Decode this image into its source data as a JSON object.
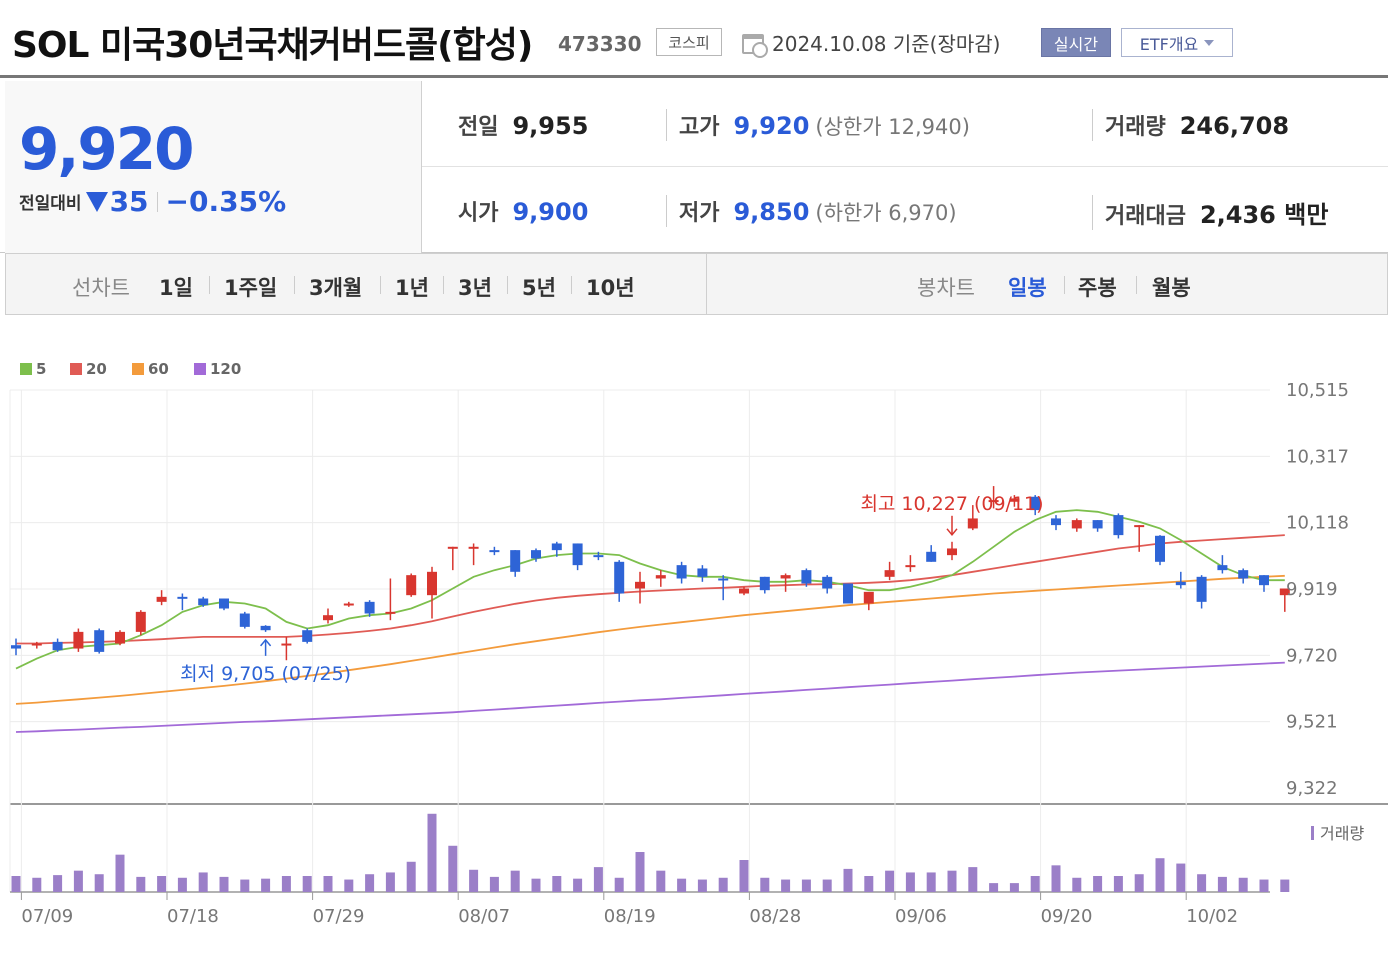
{
  "header": {
    "title": "SOL 미국30년국채커버드콜(합성)",
    "code": "473330",
    "market": "코스피",
    "base_date": "2024.10.08 기준(장마감)",
    "realtime_label": "실시간",
    "etf_overview_label": "ETF개요"
  },
  "quote": {
    "price": "9,920",
    "change_label": "전일대비",
    "change": "35",
    "change_pct": "−0.35%",
    "prev_close_label": "전일",
    "prev_close": "9,955",
    "open_label": "시가",
    "open": "9,900",
    "high_label": "고가",
    "high": "9,920",
    "upper_limit": "(상한가 12,940)",
    "low_label": "저가",
    "low": "9,850",
    "lower_limit": "(하한가 6,970)",
    "volume_label": "거래량",
    "volume": "246,708",
    "amount_label": "거래대금",
    "amount": "2,436 백만"
  },
  "tabs": {
    "line_label": "선차트",
    "periods": [
      "1일",
      "1주일",
      "3개월",
      "1년",
      "3년",
      "5년",
      "10년"
    ],
    "candle_label": "봉차트",
    "candles": [
      "일봉",
      "주봉",
      "월봉"
    ],
    "active_candle": "일봉"
  },
  "chart_data": {
    "type": "candlestick",
    "up_color": "#d8362f",
    "down_color": "#2e64d6",
    "legend": [
      {
        "name": "5",
        "color": "#7dbf4c"
      },
      {
        "name": "20",
        "color": "#e05b55"
      },
      {
        "name": "60",
        "color": "#f39b3c"
      },
      {
        "name": "120",
        "color": "#a26ad8"
      }
    ],
    "y_ticks": [
      "10,515",
      "10,317",
      "10,118",
      "9,919",
      "9,720",
      "9,521",
      "9,322"
    ],
    "ylim": [
      9322,
      10515
    ],
    "x_ticks": [
      {
        "label": "07/09",
        "index": 1
      },
      {
        "label": "07/18",
        "index": 8
      },
      {
        "label": "07/29",
        "index": 15
      },
      {
        "label": "08/07",
        "index": 22
      },
      {
        "label": "08/19",
        "index": 29
      },
      {
        "label": "08/28",
        "index": 36
      },
      {
        "label": "09/06",
        "index": 43
      },
      {
        "label": "09/20",
        "index": 50
      },
      {
        "label": "10/02",
        "index": 57
      }
    ],
    "annotation_high": "최고 10,227 (09/11)",
    "annotation_low": "최저 9,705 (07/25)",
    "high_index": 45,
    "low_index": 12,
    "volume_label": "거래량",
    "candles": [
      {
        "o": 9750,
        "h": 9770,
        "l": 9720,
        "c": 9740
      },
      {
        "o": 9750,
        "h": 9760,
        "l": 9740,
        "c": 9755
      },
      {
        "o": 9760,
        "h": 9770,
        "l": 9730,
        "c": 9735
      },
      {
        "o": 9740,
        "h": 9800,
        "l": 9730,
        "c": 9790
      },
      {
        "o": 9795,
        "h": 9800,
        "l": 9725,
        "c": 9730
      },
      {
        "o": 9755,
        "h": 9795,
        "l": 9750,
        "c": 9790
      },
      {
        "o": 9790,
        "h": 9855,
        "l": 9780,
        "c": 9850
      },
      {
        "o": 9880,
        "h": 9915,
        "l": 9870,
        "c": 9895
      },
      {
        "o": 9895,
        "h": 9905,
        "l": 9855,
        "c": 9890
      },
      {
        "o": 9890,
        "h": 9895,
        "l": 9865,
        "c": 9870
      },
      {
        "o": 9890,
        "h": 9890,
        "l": 9855,
        "c": 9860
      },
      {
        "o": 9845,
        "h": 9850,
        "l": 9800,
        "c": 9805
      },
      {
        "o": 9808,
        "h": 9810,
        "l": 9790,
        "c": 9795
      },
      {
        "o": 9750,
        "h": 9775,
        "l": 9705,
        "c": 9755
      },
      {
        "o": 9795,
        "h": 9800,
        "l": 9755,
        "c": 9760
      },
      {
        "o": 9825,
        "h": 9860,
        "l": 9815,
        "c": 9840
      },
      {
        "o": 9870,
        "h": 9880,
        "l": 9865,
        "c": 9875
      },
      {
        "o": 9880,
        "h": 9885,
        "l": 9835,
        "c": 9845
      },
      {
        "o": 9850,
        "h": 9950,
        "l": 9825,
        "c": 9850
      },
      {
        "o": 9900,
        "h": 9965,
        "l": 9895,
        "c": 9960
      },
      {
        "o": 9900,
        "h": 9985,
        "l": 9830,
        "c": 9970
      },
      {
        "o": 10040,
        "h": 10045,
        "l": 9975,
        "c": 10045
      },
      {
        "o": 10045,
        "h": 10055,
        "l": 9990,
        "c": 10045
      },
      {
        "o": 10035,
        "h": 10045,
        "l": 10020,
        "c": 10030
      },
      {
        "o": 10035,
        "h": 10035,
        "l": 9955,
        "c": 9970
      },
      {
        "o": 10035,
        "h": 10040,
        "l": 10000,
        "c": 10010
      },
      {
        "o": 10055,
        "h": 10060,
        "l": 10015,
        "c": 10035
      },
      {
        "o": 10055,
        "h": 10055,
        "l": 9975,
        "c": 9990
      },
      {
        "o": 10020,
        "h": 10030,
        "l": 10005,
        "c": 10015
      },
      {
        "o": 10000,
        "h": 10005,
        "l": 9880,
        "c": 9905
      },
      {
        "o": 9920,
        "h": 9970,
        "l": 9875,
        "c": 9940
      },
      {
        "o": 9950,
        "h": 9975,
        "l": 9925,
        "c": 9960
      },
      {
        "o": 9990,
        "h": 10000,
        "l": 9935,
        "c": 9950
      },
      {
        "o": 9980,
        "h": 9990,
        "l": 9940,
        "c": 9955
      },
      {
        "o": 9950,
        "h": 9960,
        "l": 9885,
        "c": 9945
      },
      {
        "o": 9905,
        "h": 9925,
        "l": 9900,
        "c": 9920
      },
      {
        "o": 9955,
        "h": 9955,
        "l": 9905,
        "c": 9915
      },
      {
        "o": 9950,
        "h": 9965,
        "l": 9910,
        "c": 9960
      },
      {
        "o": 9975,
        "h": 9980,
        "l": 9925,
        "c": 9935
      },
      {
        "o": 9955,
        "h": 9960,
        "l": 9905,
        "c": 9920
      },
      {
        "o": 9935,
        "h": 9935,
        "l": 9875,
        "c": 9875
      },
      {
        "o": 9875,
        "h": 9900,
        "l": 9855,
        "c": 9910
      },
      {
        "o": 9955,
        "h": 10000,
        "l": 9945,
        "c": 9975
      },
      {
        "o": 9985,
        "h": 10020,
        "l": 9970,
        "c": 9990
      },
      {
        "o": 10030,
        "h": 10050,
        "l": 10000,
        "c": 10000
      },
      {
        "o": 10020,
        "h": 10060,
        "l": 10005,
        "c": 10040
      },
      {
        "o": 10100,
        "h": 10170,
        "l": 10095,
        "c": 10130
      },
      {
        "o": 10180,
        "h": 10227,
        "l": 10160,
        "c": 10185
      },
      {
        "o": 10180,
        "h": 10200,
        "l": 10165,
        "c": 10190
      },
      {
        "o": 10195,
        "h": 10200,
        "l": 10140,
        "c": 10155
      },
      {
        "o": 10130,
        "h": 10140,
        "l": 10095,
        "c": 10110
      },
      {
        "o": 10100,
        "h": 10130,
        "l": 10090,
        "c": 10125
      },
      {
        "o": 10125,
        "h": 10125,
        "l": 10090,
        "c": 10100
      },
      {
        "o": 10140,
        "h": 10145,
        "l": 10070,
        "c": 10080
      },
      {
        "o": 10105,
        "h": 10110,
        "l": 10030,
        "c": 10110
      },
      {
        "o": 10078,
        "h": 10080,
        "l": 9990,
        "c": 10000
      },
      {
        "o": 9940,
        "h": 9970,
        "l": 9920,
        "c": 9930
      },
      {
        "o": 9955,
        "h": 9960,
        "l": 9860,
        "c": 9880
      },
      {
        "o": 9990,
        "h": 10020,
        "l": 9965,
        "c": 9975
      },
      {
        "o": 9975,
        "h": 9980,
        "l": 9935,
        "c": 9950
      },
      {
        "o": 9960,
        "h": 9960,
        "l": 9910,
        "c": 9930
      },
      {
        "o": 9900,
        "h": 9920,
        "l": 9850,
        "c": 9920
      }
    ],
    "ma5": [
      9680,
      9710,
      9735,
      9745,
      9750,
      9755,
      9780,
      9810,
      9850,
      9870,
      9880,
      9875,
      9860,
      9820,
      9800,
      9810,
      9830,
      9840,
      9845,
      9860,
      9885,
      9920,
      9955,
      9975,
      9990,
      10010,
      10020,
      10025,
      10025,
      10020,
      9995,
      9975,
      9960,
      9955,
      9955,
      9945,
      9940,
      9940,
      9945,
      9940,
      9930,
      9915,
      9915,
      9925,
      9940,
      9960,
      10000,
      10045,
      10090,
      10125,
      10150,
      10155,
      10150,
      10135,
      10120,
      10100,
      10065,
      10025,
      9985,
      9960,
      9945,
      9945
    ],
    "ma20": [
      9755,
      9755,
      9757,
      9758,
      9760,
      9762,
      9765,
      9768,
      9772,
      9775,
      9775,
      9775,
      9775,
      9775,
      9778,
      9782,
      9787,
      9793,
      9800,
      9810,
      9822,
      9836,
      9850,
      9862,
      9874,
      9884,
      9892,
      9898,
      9903,
      9907,
      9911,
      9914,
      9917,
      9920,
      9922,
      9925,
      9928,
      9930,
      9932,
      9933,
      9935,
      9937,
      9940,
      9945,
      9952,
      9960,
      9970,
      9980,
      9990,
      10000,
      10010,
      10020,
      10030,
      10040,
      10047,
      10055,
      10060,
      10064,
      10068,
      10072,
      10076,
      10080
    ],
    "ma60": [
      9574,
      9578,
      9583,
      9588,
      9593,
      9598,
      9604,
      9610,
      9616,
      9622,
      9628,
      9635,
      9642,
      9650,
      9658,
      9666,
      9675,
      9684,
      9693,
      9703,
      9713,
      9723,
      9733,
      9743,
      9753,
      9762,
      9771,
      9780,
      9789,
      9797,
      9805,
      9812,
      9819,
      9826,
      9833,
      9840,
      9846,
      9852,
      9858,
      9864,
      9870,
      9875,
      9880,
      9885,
      9890,
      9895,
      9900,
      9905,
      9909,
      9913,
      9917,
      9921,
      9925,
      9929,
      9933,
      9937,
      9941,
      9945,
      9949,
      9952,
      9955,
      9958
    ],
    "ma120": [
      9490,
      9492,
      9495,
      9497,
      9500,
      9503,
      9505,
      9508,
      9511,
      9514,
      9517,
      9520,
      9522,
      9525,
      9528,
      9531,
      9534,
      9537,
      9540,
      9543,
      9546,
      9549,
      9553,
      9557,
      9561,
      9565,
      9569,
      9573,
      9577,
      9581,
      9585,
      9588,
      9592,
      9596,
      9600,
      9604,
      9608,
      9612,
      9616,
      9620,
      9624,
      9628,
      9632,
      9636,
      9640,
      9644,
      9648,
      9652,
      9656,
      9660,
      9664,
      9668,
      9671,
      9674,
      9677,
      9680,
      9683,
      9686,
      9689,
      9692,
      9695,
      9698
    ],
    "volume": [
      18,
      16,
      19,
      24,
      20,
      42,
      17,
      18,
      16,
      22,
      17,
      14,
      15,
      18,
      18,
      18,
      14,
      20,
      22,
      34,
      88,
      52,
      25,
      17,
      24,
      15,
      18,
      15,
      28,
      16,
      45,
      24,
      15,
      14,
      16,
      36,
      16,
      14,
      14,
      14,
      26,
      18,
      24,
      22,
      22,
      24,
      28,
      10,
      10,
      18,
      30,
      16,
      18,
      18,
      20,
      38,
      32,
      20,
      17,
      16,
      14,
      14
    ]
  }
}
